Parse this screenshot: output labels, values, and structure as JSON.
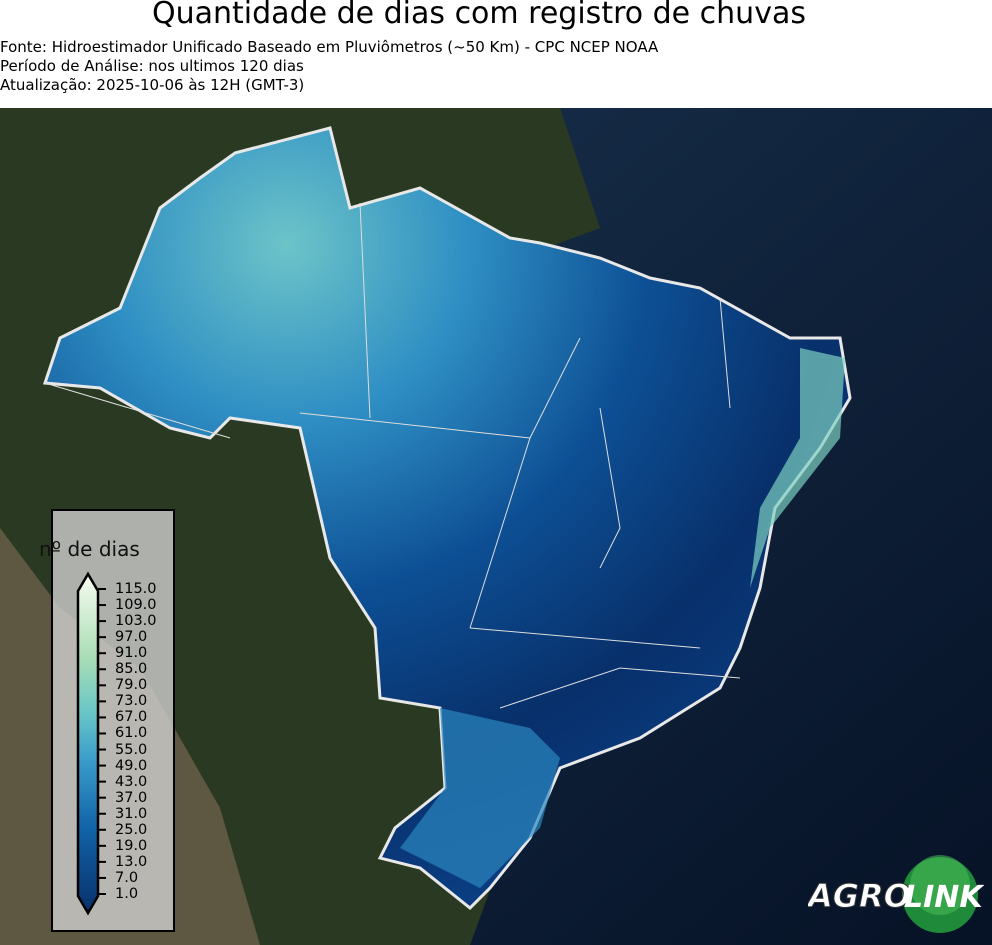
{
  "header": {
    "title": "Quantidade de dias com registro de chuvas",
    "source": "Fonte: Hidroestimador Unificado Baseado em Pluviômetros (~50 Km) - CPC NCEP NOAA",
    "period": "Período de Análise: nos ultimos 120 dias",
    "updated": "Atualização: 2025-10-06 às 12H (GMT-3)"
  },
  "legend": {
    "title": "nº de dias",
    "ticks": [
      "115.0",
      "109.0",
      "103.0",
      "97.0",
      "91.0",
      "85.0",
      "79.0",
      "73.0",
      "67.0",
      "61.0",
      "55.0",
      "49.0",
      "43.0",
      "37.0",
      "31.0",
      "25.0",
      "19.0",
      "13.0",
      "7.0",
      "1.0"
    ],
    "colors": {
      "low": "#08306b",
      "mid_low": "#1f78b4",
      "mid": "#4eb3d3",
      "mid_high": "#a8ddb5",
      "high": "#f7fcf0"
    }
  },
  "logo": {
    "text_left": "AGRO",
    "text_right": "LINK"
  }
}
